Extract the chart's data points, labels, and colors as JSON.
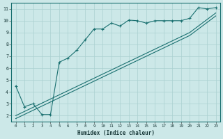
{
  "bg_color": "#cce8e8",
  "grid_color": "#aad0d0",
  "line_color": "#1a7070",
  "xlabel": "Humidex (Indice chaleur)",
  "xlim": [
    -0.5,
    23.5
  ],
  "ylim": [
    1.5,
    11.5
  ],
  "xticks": [
    0,
    1,
    2,
    3,
    4,
    5,
    6,
    7,
    8,
    9,
    10,
    11,
    12,
    13,
    14,
    15,
    16,
    17,
    18,
    19,
    20,
    21,
    22,
    23
  ],
  "yticks": [
    2,
    3,
    4,
    5,
    6,
    7,
    8,
    9,
    10,
    11
  ],
  "line1_x": [
    0,
    1,
    2,
    3,
    4,
    5,
    6,
    7,
    8,
    9,
    10,
    11,
    12,
    13,
    14,
    15,
    16,
    17,
    18,
    19,
    20,
    21,
    22,
    23
  ],
  "line1_y": [
    4.5,
    2.75,
    3.0,
    2.1,
    2.1,
    6.5,
    6.85,
    7.5,
    8.4,
    9.3,
    9.3,
    9.8,
    9.55,
    10.05,
    10.0,
    9.8,
    10.0,
    10.0,
    10.0,
    10.0,
    10.2,
    11.1,
    11.0,
    11.1
  ],
  "line2_x": [
    0,
    1,
    2,
    3,
    4,
    5,
    6,
    7,
    8,
    9,
    10,
    11,
    12,
    13,
    14,
    15,
    16,
    17,
    18,
    19,
    20,
    21,
    22,
    23
  ],
  "line2_y": [
    2.0,
    2.35,
    2.7,
    3.05,
    3.4,
    3.75,
    4.1,
    4.45,
    4.8,
    5.15,
    5.5,
    5.85,
    6.2,
    6.55,
    6.9,
    7.25,
    7.6,
    7.95,
    8.3,
    8.65,
    9.0,
    9.55,
    10.1,
    10.65
  ],
  "line3_x": [
    0,
    1,
    2,
    3,
    4,
    5,
    6,
    7,
    8,
    9,
    10,
    11,
    12,
    13,
    14,
    15,
    16,
    17,
    18,
    19,
    20,
    21,
    22,
    23
  ],
  "line3_y": [
    1.75,
    2.1,
    2.45,
    2.8,
    3.15,
    3.5,
    3.85,
    4.2,
    4.55,
    4.9,
    5.25,
    5.6,
    5.95,
    6.3,
    6.65,
    7.0,
    7.35,
    7.7,
    8.05,
    8.4,
    8.75,
    9.3,
    9.85,
    10.4
  ]
}
